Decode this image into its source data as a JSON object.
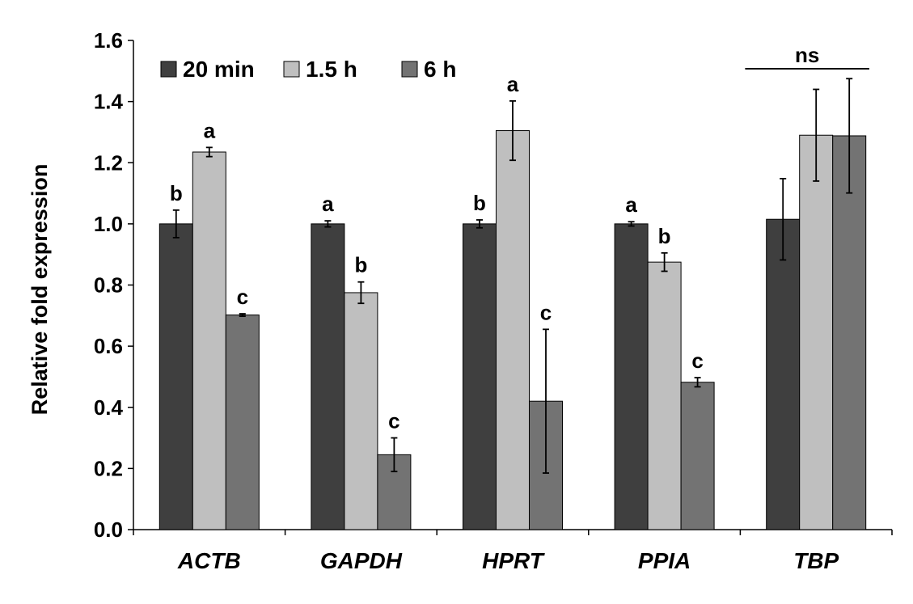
{
  "chart_data": {
    "type": "bar",
    "title": "",
    "xlabel": "",
    "ylabel": "Relative fold expression",
    "ylim": [
      0,
      1.6
    ],
    "yticks": [
      "0.0",
      "0.2",
      "0.4",
      "0.6",
      "0.8",
      "1.0",
      "1.2",
      "1.4",
      "1.6"
    ],
    "grid": false,
    "legend_position": "top-left",
    "categories": [
      "ACTB",
      "GAPDH",
      "HPRT",
      "PPIA",
      "TBP"
    ],
    "series": [
      {
        "name": "20 min",
        "color": "#3f3f3f",
        "values": [
          1.0,
          1.0,
          1.0,
          1.0,
          1.015
        ],
        "errors": [
          0.045,
          0.01,
          0.013,
          0.007,
          0.133
        ],
        "sig_labels": [
          "b",
          "a",
          "b",
          "a",
          ""
        ]
      },
      {
        "name": "1.5 h",
        "color": "#bfbfbf",
        "values": [
          1.235,
          0.775,
          1.305,
          0.875,
          1.29
        ],
        "errors": [
          0.015,
          0.035,
          0.097,
          0.03,
          0.15
        ],
        "sig_labels": [
          "a",
          "b",
          "a",
          "b",
          ""
        ]
      },
      {
        "name": "6 h",
        "color": "#737373",
        "values": [
          0.702,
          0.245,
          0.42,
          0.482,
          1.288
        ],
        "errors": [
          0.004,
          0.055,
          0.235,
          0.015,
          0.187
        ],
        "sig_labels": [
          "c",
          "c",
          "c",
          "c",
          ""
        ]
      }
    ],
    "annotations": [
      {
        "category": "TBP",
        "text": "ns"
      }
    ]
  }
}
